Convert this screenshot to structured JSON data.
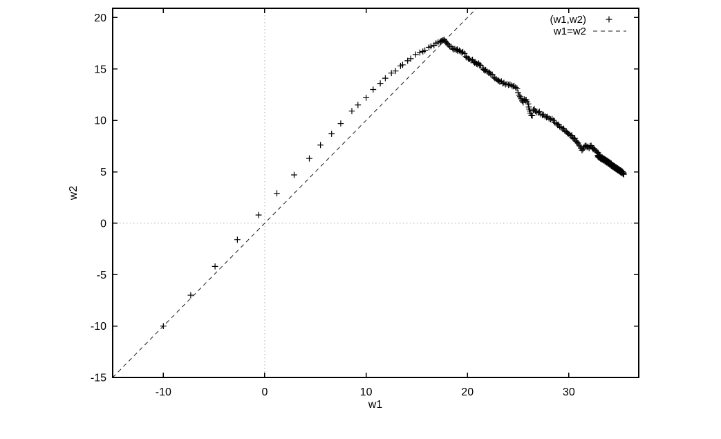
{
  "chart_data": {
    "type": "scatter",
    "title": "",
    "xlabel": "w1",
    "ylabel": "w2",
    "xlim": [
      -15,
      36.9
    ],
    "ylim": [
      -15,
      20.9
    ],
    "xticks": [
      -10,
      0,
      10,
      20,
      30
    ],
    "yticks": [
      -15,
      -10,
      -5,
      0,
      5,
      10,
      15,
      20
    ],
    "grid": "dotted-zero-axes-only",
    "legend_position": "top-right-inside",
    "legend": [
      {
        "label": "(w1,w2)",
        "style": "points",
        "marker": "plus"
      },
      {
        "label": "w1=w2",
        "style": "dashed-line"
      }
    ],
    "colors": {
      "foreground": "#000000",
      "identity_line": "#1a1a1a",
      "zero_axis": "#b0b0b0",
      "background": "#ffffff"
    },
    "series": [
      {
        "name": "(w1,w2)",
        "type": "points",
        "marker": "plus",
        "color": "#000000",
        "points": [
          [
            -10,
            -10
          ],
          [
            -7.3,
            -7
          ],
          [
            -4.9,
            -4.2
          ],
          [
            -2.7,
            -1.6
          ],
          [
            -0.6,
            0.8
          ],
          [
            1.2,
            2.9
          ],
          [
            2.9,
            4.7
          ],
          [
            4.4,
            6.3
          ],
          [
            5.5,
            7.6
          ],
          [
            6.6,
            8.7
          ],
          [
            7.5,
            9.7
          ],
          [
            8.6,
            10.9
          ],
          [
            9.2,
            11.5
          ],
          [
            10,
            12.2
          ],
          [
            10.7,
            13
          ],
          [
            11.4,
            13.6
          ],
          [
            11.9,
            14.1
          ],
          [
            12.5,
            14.6
          ],
          [
            12.9,
            14.8
          ],
          [
            13.4,
            15.3
          ],
          [
            13.6,
            15.4
          ],
          [
            14.1,
            15.8
          ],
          [
            14.4,
            16
          ],
          [
            14.9,
            16.4
          ],
          [
            15.3,
            16.6
          ],
          [
            15.6,
            16.7
          ],
          [
            15.8,
            16.8
          ],
          [
            16.2,
            17.1
          ],
          [
            16.4,
            17.2
          ],
          [
            16.7,
            17.3
          ],
          [
            16.9,
            17.5
          ],
          [
            17.1,
            17.6
          ],
          [
            17.3,
            17.65
          ],
          [
            17.5,
            17.75
          ],
          [
            17.6,
            17.8
          ],
          [
            17.8,
            17.7
          ],
          [
            17.4,
            17.7
          ],
          [
            17.7,
            17.85
          ],
          [
            17.9,
            17.6
          ],
          [
            18,
            17.5
          ],
          [
            18.1,
            17.35
          ],
          [
            18.25,
            17.2
          ],
          [
            18.4,
            17.15
          ],
          [
            18.55,
            17
          ],
          [
            18.6,
            16.9
          ],
          [
            18.75,
            16.95
          ],
          [
            18.9,
            16.85
          ],
          [
            19,
            16.9
          ],
          [
            19.05,
            16.75
          ],
          [
            19.2,
            16.8
          ],
          [
            19.3,
            16.7
          ],
          [
            19.45,
            16.6
          ],
          [
            19.55,
            16.65
          ],
          [
            19.7,
            16.5
          ],
          [
            19.85,
            16.2
          ],
          [
            19.95,
            16.1
          ],
          [
            20.1,
            16
          ],
          [
            20.2,
            15.95
          ],
          [
            20.35,
            15.85
          ],
          [
            20.5,
            15.9
          ],
          [
            20.6,
            15.7
          ],
          [
            20.7,
            15.6
          ],
          [
            20.8,
            15.65
          ],
          [
            20.9,
            15.5
          ],
          [
            21,
            15.45
          ],
          [
            21.1,
            15.55
          ],
          [
            21.2,
            15.4
          ],
          [
            21.3,
            15.35
          ],
          [
            21.45,
            15.1
          ],
          [
            21.6,
            14.95
          ],
          [
            21.7,
            14.85
          ],
          [
            21.8,
            14.9
          ],
          [
            21.95,
            14.75
          ],
          [
            22.1,
            14.6
          ],
          [
            22.2,
            14.65
          ],
          [
            22.3,
            14.5
          ],
          [
            22.45,
            14.45
          ],
          [
            22.6,
            14.2
          ],
          [
            22.7,
            14.1
          ],
          [
            22.85,
            14
          ],
          [
            23,
            13.9
          ],
          [
            23.1,
            13.85
          ],
          [
            23.2,
            13.75
          ],
          [
            23.35,
            13.8
          ],
          [
            23.5,
            13.6
          ],
          [
            23.6,
            13.65
          ],
          [
            23.75,
            13.5
          ],
          [
            23.9,
            13.55
          ],
          [
            24.05,
            13.45
          ],
          [
            24.2,
            13.5
          ],
          [
            24.35,
            13.4
          ],
          [
            24.5,
            13.3
          ],
          [
            24.6,
            13.35
          ],
          [
            24.75,
            13.2
          ],
          [
            24.9,
            13.1
          ],
          [
            25,
            12.7
          ],
          [
            25.1,
            12.45
          ],
          [
            25.2,
            12.3
          ],
          [
            25.3,
            12.1
          ],
          [
            25.4,
            11.9
          ],
          [
            25.5,
            11.75
          ],
          [
            25.6,
            12.05
          ],
          [
            25.7,
            11.95
          ],
          [
            25.8,
            12
          ],
          [
            25.9,
            11.8
          ],
          [
            26,
            11.6
          ],
          [
            26.05,
            11.3
          ],
          [
            26.1,
            11.1
          ],
          [
            26.15,
            10.9
          ],
          [
            26.2,
            10.7
          ],
          [
            26.3,
            10.5
          ],
          [
            26.4,
            10.45
          ],
          [
            26.5,
            11
          ],
          [
            26.6,
            11.1
          ],
          [
            26.7,
            10.9
          ],
          [
            26.85,
            10.8
          ],
          [
            27,
            10.75
          ],
          [
            27.1,
            10.85
          ],
          [
            27.25,
            10.6
          ],
          [
            27.4,
            10.5
          ],
          [
            27.5,
            10.55
          ],
          [
            27.65,
            10.4
          ],
          [
            27.8,
            10.3
          ],
          [
            27.9,
            10.35
          ],
          [
            28.05,
            10.2
          ],
          [
            28.2,
            10.1
          ],
          [
            28.35,
            10.15
          ],
          [
            28.5,
            10
          ],
          [
            28.6,
            9.8
          ],
          [
            28.75,
            9.7
          ],
          [
            28.9,
            9.55
          ],
          [
            29,
            9.6
          ],
          [
            29.1,
            9.4
          ],
          [
            29.25,
            9.3
          ],
          [
            29.4,
            9.15
          ],
          [
            29.5,
            9.2
          ],
          [
            29.6,
            9
          ],
          [
            29.75,
            8.9
          ],
          [
            29.85,
            8.8
          ],
          [
            29.95,
            8.7
          ],
          [
            30.1,
            8.6
          ],
          [
            30.2,
            8.5
          ],
          [
            30.3,
            8.55
          ],
          [
            30.4,
            8.3
          ],
          [
            30.5,
            8.2
          ],
          [
            30.6,
            8.25
          ],
          [
            30.7,
            8
          ],
          [
            30.8,
            7.9
          ],
          [
            30.9,
            7.8
          ],
          [
            31,
            7.6
          ],
          [
            31.1,
            7.5
          ],
          [
            31.2,
            7.3
          ],
          [
            31.3,
            7.1
          ],
          [
            31.4,
            7.2
          ],
          [
            31.5,
            7.4
          ],
          [
            31.6,
            7.5
          ],
          [
            31.7,
            7.55
          ],
          [
            31.8,
            7.4
          ],
          [
            31.9,
            7.45
          ],
          [
            32,
            7.3
          ],
          [
            32.1,
            7.5
          ],
          [
            32.2,
            7.55
          ],
          [
            32.3,
            7.35
          ],
          [
            32.4,
            7.2
          ],
          [
            32.5,
            7.25
          ],
          [
            32.6,
            7.1
          ],
          [
            32.7,
            7
          ],
          [
            32.8,
            6.9
          ],
          [
            32.9,
            6.85
          ],
          [
            32.85,
            6.6
          ],
          [
            32.88,
            6.45
          ],
          [
            32.91,
            6.55
          ],
          [
            32.97,
            6.4
          ],
          [
            33,
            6.55
          ],
          [
            33.03,
            6.35
          ],
          [
            33.06,
            6.5
          ],
          [
            33.12,
            6.3
          ],
          [
            33.15,
            6.45
          ],
          [
            33.18,
            6.25
          ],
          [
            33.21,
            6.4
          ],
          [
            33.27,
            6.2
          ],
          [
            33.3,
            6.4
          ],
          [
            33.33,
            6.2
          ],
          [
            33.36,
            6.3
          ],
          [
            33.42,
            6.1
          ],
          [
            33.45,
            6.3
          ],
          [
            33.48,
            6.1
          ],
          [
            33.51,
            6.25
          ],
          [
            33.57,
            6
          ],
          [
            33.6,
            6.2
          ],
          [
            33.63,
            6
          ],
          [
            33.66,
            6.15
          ],
          [
            33.72,
            5.9
          ],
          [
            33.75,
            6.1
          ],
          [
            33.78,
            5.9
          ],
          [
            33.81,
            6.05
          ],
          [
            33.87,
            5.8
          ],
          [
            33.9,
            6
          ],
          [
            33.93,
            5.8
          ],
          [
            33.96,
            5.95
          ],
          [
            34.02,
            5.7
          ],
          [
            34.05,
            5.9
          ],
          [
            34.08,
            5.7
          ],
          [
            34.11,
            5.85
          ],
          [
            34.17,
            5.6
          ],
          [
            34.2,
            5.8
          ],
          [
            34.23,
            5.55
          ],
          [
            34.26,
            5.7
          ],
          [
            34.32,
            5.5
          ],
          [
            34.35,
            5.65
          ],
          [
            34.38,
            5.45
          ],
          [
            34.41,
            5.6
          ],
          [
            34.47,
            5.4
          ],
          [
            34.5,
            5.55
          ],
          [
            34.53,
            5.35
          ],
          [
            34.56,
            5.5
          ],
          [
            34.62,
            5.3
          ],
          [
            34.65,
            5.45
          ],
          [
            34.68,
            5.25
          ],
          [
            34.71,
            5.4
          ],
          [
            34.77,
            5.2
          ],
          [
            34.8,
            5.35
          ],
          [
            34.83,
            5.15
          ],
          [
            34.86,
            5.3
          ],
          [
            34.92,
            5.1
          ],
          [
            34.95,
            5.25
          ],
          [
            34.98,
            5.05
          ],
          [
            35.01,
            5.2
          ],
          [
            35.07,
            5
          ],
          [
            35.1,
            5.15
          ],
          [
            35.13,
            4.95
          ],
          [
            35.16,
            5.1
          ],
          [
            35.22,
            4.9
          ],
          [
            35.25,
            5.05
          ],
          [
            35.28,
            4.85
          ],
          [
            35.31,
            5
          ],
          [
            35.37,
            4.8
          ],
          [
            35.4,
            4.9
          ],
          [
            35.43,
            4.75
          ]
        ]
      },
      {
        "name": "w1=w2",
        "type": "line",
        "dash": true,
        "color": "#1a1a1a",
        "points": [
          [
            -15,
            -15
          ],
          [
            20.9,
            20.9
          ]
        ]
      }
    ]
  }
}
